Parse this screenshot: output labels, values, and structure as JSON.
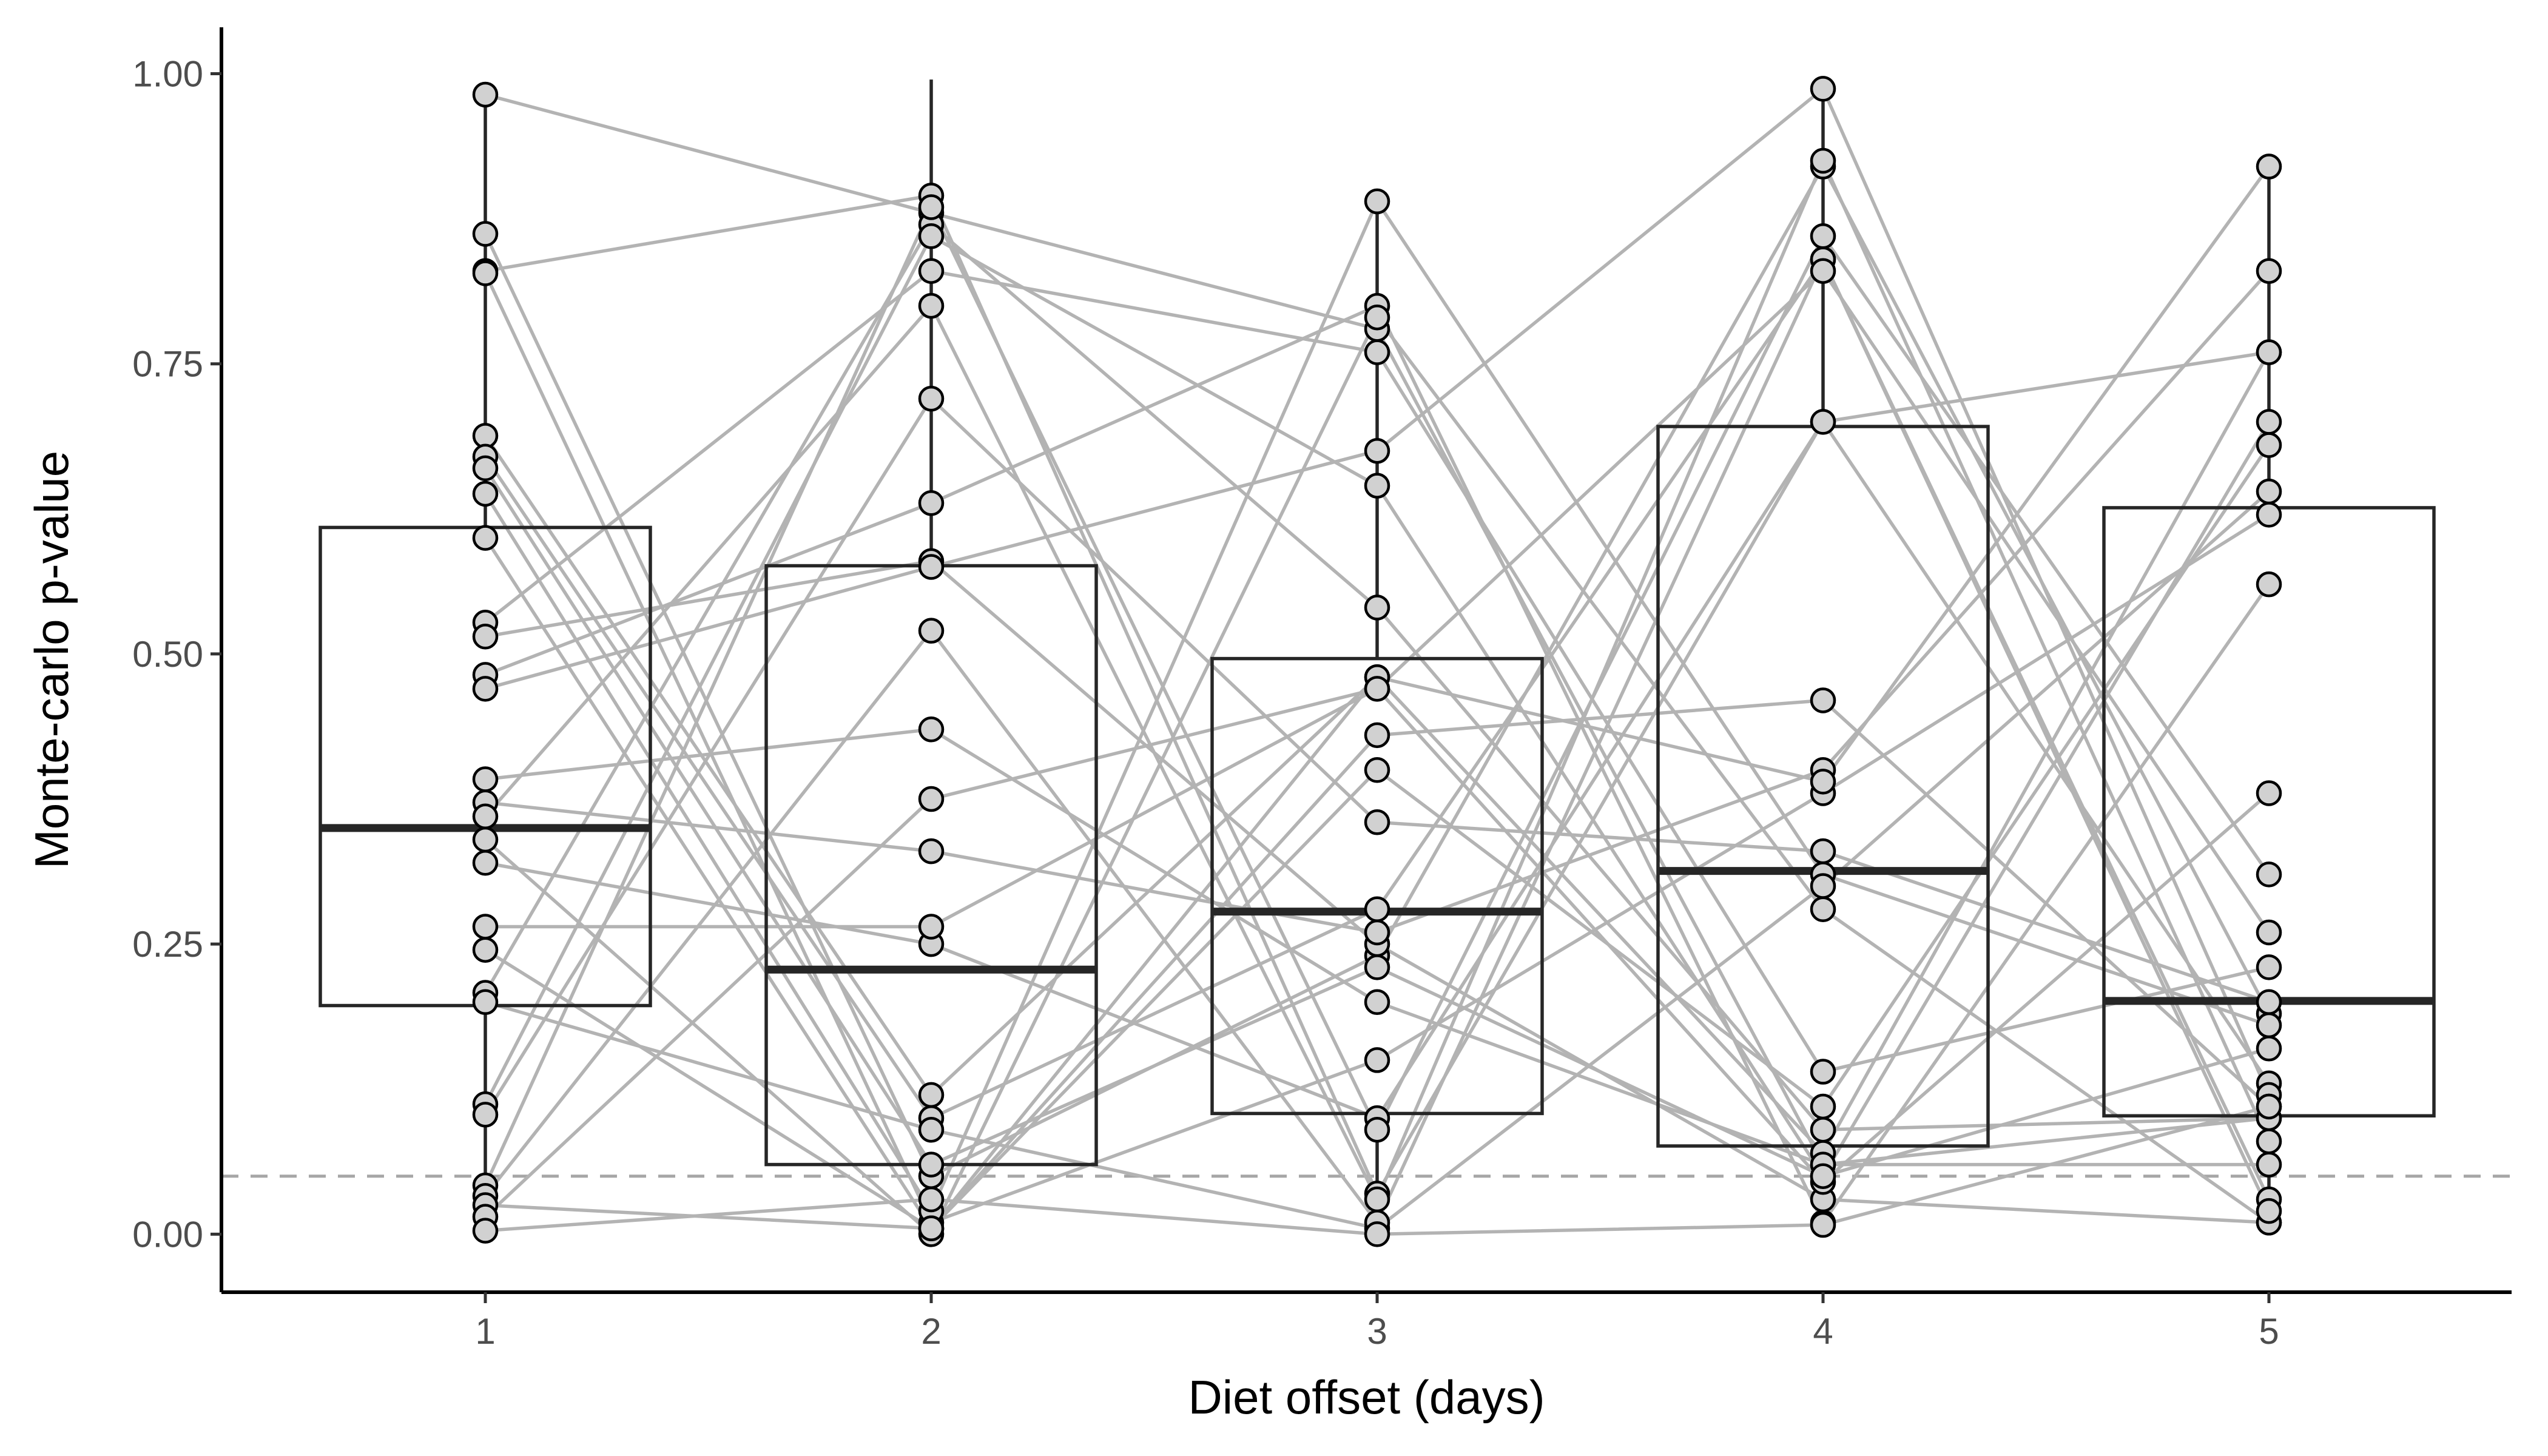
{
  "chart_data": {
    "type": "box",
    "xlabel": "Diet offset (days)",
    "ylabel": "Monte-carlo p-value",
    "categories": [
      "1",
      "2",
      "3",
      "4",
      "5"
    ],
    "ylim": [
      -0.05,
      1.04
    ],
    "yticks": [
      0,
      0.25,
      0.5,
      0.75,
      1.0
    ],
    "ytick_labels": [
      "0.00",
      "0.25",
      "0.50",
      "0.75",
      "1.00"
    ],
    "reference_line": {
      "y": 0.05,
      "style": "dashed"
    },
    "boxes": [
      {
        "category": "1",
        "q1": 0.197,
        "median": 0.35,
        "q3": 0.609,
        "whisker_low": 0.001,
        "whisker_high": 0.982
      },
      {
        "category": "2",
        "q1": 0.06,
        "median": 0.228,
        "q3": 0.576,
        "whisker_low": 0.0,
        "whisker_high": 0.995
      },
      {
        "category": "3",
        "q1": 0.104,
        "median": 0.278,
        "q3": 0.496,
        "whisker_low": 0.0,
        "whisker_high": 0.891
      },
      {
        "category": "4",
        "q1": 0.076,
        "median": 0.313,
        "q3": 0.696,
        "whisker_low": 0.0,
        "whisker_high": 0.987
      },
      {
        "category": "5",
        "q1": 0.102,
        "median": 0.201,
        "q3": 0.626,
        "whisker_low": 0.001,
        "whisker_high": 0.922
      }
    ],
    "series": [
      {
        "values": [
          0.982,
          0.88,
          0.78,
          0.06,
          0.1
        ]
      },
      {
        "values": [
          0.862,
          0.05,
          0.24,
          0.92,
          0.19
        ]
      },
      {
        "values": [
          0.83,
          0.895,
          0.035,
          0.7,
          0.13
        ]
      },
      {
        "values": [
          0.828,
          0.01,
          0.15,
          0.38,
          0.62
        ]
      },
      {
        "values": [
          0.688,
          0.12,
          0.48,
          0.07,
          0.76
        ]
      },
      {
        "values": [
          0.67,
          0.1,
          0.28,
          0.84,
          0.03
        ]
      },
      {
        "values": [
          0.66,
          0.06,
          0.23,
          0.05,
          0.7
        ]
      },
      {
        "values": [
          0.638,
          0.02,
          0.89,
          0.31,
          0.18
        ]
      },
      {
        "values": [
          0.6,
          0.005,
          0.4,
          0.11,
          0.68
        ]
      },
      {
        "values": [
          0.527,
          0.83,
          0.76,
          0.14,
          0.23
        ]
      },
      {
        "values": [
          0.515,
          0.58,
          0.25,
          0.03,
          0.01
        ]
      },
      {
        "values": [
          0.482,
          0.63,
          0.8,
          0.01,
          0.56
        ]
      },
      {
        "values": [
          0.47,
          0.575,
          0.675,
          0.987,
          0.12
        ]
      },
      {
        "values": [
          0.392,
          0.435,
          0.2,
          0.06,
          0.06
        ]
      },
      {
        "values": [
          0.372,
          0.33,
          0.26,
          0.4,
          0.83
        ]
      },
      {
        "values": [
          0.36,
          0.8,
          0.03,
          0.925,
          0.08
        ]
      },
      {
        "values": [
          0.34,
          0.0,
          0.79,
          0.28,
          0.01
        ]
      },
      {
        "values": [
          0.32,
          0.25,
          0.1,
          0.7,
          0.76
        ]
      },
      {
        "values": [
          0.265,
          0.265,
          0.47,
          0.045,
          0.38
        ]
      },
      {
        "values": [
          0.245,
          0.005,
          0.43,
          0.46,
          0.11
        ]
      },
      {
        "values": [
          0.208,
          0.87,
          0.54,
          0.09,
          0.1
        ]
      },
      {
        "values": [
          0.2,
          0.09,
          0.005,
          0.3,
          0.64
        ]
      },
      {
        "values": [
          0.112,
          0.86,
          0.645,
          0.05,
          0.16
        ]
      },
      {
        "values": [
          0.103,
          0.72,
          0.355,
          0.33,
          0.2
        ]
      },
      {
        "values": [
          0.042,
          0.885,
          0.09,
          0.86,
          0.31
        ]
      },
      {
        "values": [
          0.033,
          0.52,
          0.01,
          0.84,
          0.02
        ]
      },
      {
        "values": [
          0.025,
          0.005,
          0.48,
          0.39,
          0.92
        ]
      },
      {
        "values": [
          0.015,
          0.375,
          0.47,
          0.83,
          0.26
        ]
      },
      {
        "values": [
          0.003,
          0.03,
          0.0,
          0.008,
          0.11
        ]
      }
    ]
  }
}
